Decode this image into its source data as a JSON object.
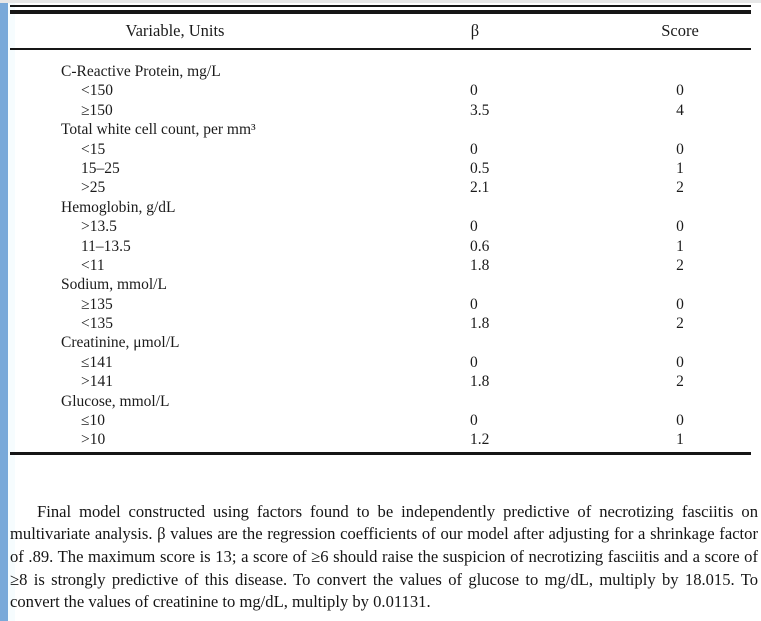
{
  "page": {
    "background": "#ffffff",
    "left_stripe_color": "#79a9d9",
    "top_line_color": "#e7e7e7",
    "rule_color": "#161616",
    "text_color": "#1b1b1b"
  },
  "table": {
    "headers": {
      "variable": "Variable, Units",
      "beta": "β",
      "score": "Score"
    },
    "groups": [
      {
        "label": "C-Reactive Protein, mg/L",
        "rows": [
          {
            "range": "<150",
            "beta": "0",
            "score": "0"
          },
          {
            "range": "≥150",
            "beta": "3.5",
            "score": "4"
          }
        ]
      },
      {
        "label": "Total white cell count, per mm³",
        "rows": [
          {
            "range": "<15",
            "beta": "0",
            "score": "0"
          },
          {
            "range": "15–25",
            "beta": "0.5",
            "score": "1"
          },
          {
            "range": ">25",
            "beta": "2.1",
            "score": "2"
          }
        ]
      },
      {
        "label": "Hemoglobin, g/dL",
        "rows": [
          {
            "range": ">13.5",
            "beta": "0",
            "score": "0"
          },
          {
            "range": "11–13.5",
            "beta": "0.6",
            "score": "1"
          },
          {
            "range": "<11",
            "beta": "1.8",
            "score": "2"
          }
        ]
      },
      {
        "label": "Sodium, mmol/L",
        "rows": [
          {
            "range": "≥135",
            "beta": "0",
            "score": "0"
          },
          {
            "range": "<135",
            "beta": "1.8",
            "score": "2"
          }
        ]
      },
      {
        "label": "Creatinine, μmol/L",
        "rows": [
          {
            "range": "≤141",
            "beta": "0",
            "score": "0"
          },
          {
            "range": ">141",
            "beta": "1.8",
            "score": "2"
          }
        ]
      },
      {
        "label": "Glucose, mmol/L",
        "rows": [
          {
            "range": "≤10",
            "beta": "0",
            "score": "0"
          },
          {
            "range": ">10",
            "beta": "1.2",
            "score": "1"
          }
        ]
      }
    ]
  },
  "footnote": {
    "text": "Final model constructed using factors found to be independently predictive of necrotizing fasciitis on multivariate analysis. β values are the regression coefficients of our model after adjusting for a shrinkage factor of .89. The maximum score is 13; a score of ≥6 should raise the suspicion of necrotizing fasciitis and a score of ≥8 is strongly predictive of this disease. To convert the values of glucose to mg/dL, multiply by 18.015. To convert the values of creatinine to mg/dL, multiply by 0.01131."
  }
}
